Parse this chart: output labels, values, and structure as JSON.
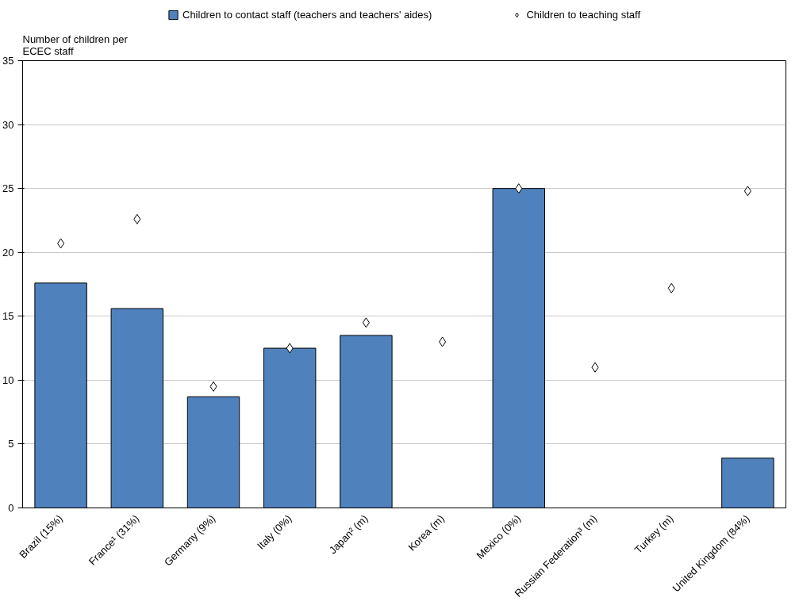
{
  "chart_data": {
    "type": "bar",
    "ylabel": "Number of children per\nECEC staff",
    "categories": [
      "Brazil (15%)",
      "France¹ (31%)",
      "Germany (9%)",
      "Italy (0%)",
      "Japan² (m)",
      "Korea (m)",
      "Mexico (0%)",
      "Russian Federation³ (m)",
      "Turkey (m)",
      "United Kingdom (84%)"
    ],
    "series": [
      {
        "name": "Children to contact staff (teachers and teachers' aides)",
        "color": "#4f81bd",
        "values": [
          17.6,
          15.6,
          8.7,
          12.5,
          13.5,
          null,
          25.0,
          null,
          null,
          3.9
        ]
      },
      {
        "name": "Children to teaching staff",
        "type": "scatter",
        "marker": "diamond",
        "color": "#ffffff",
        "values": [
          20.7,
          22.6,
          9.5,
          12.5,
          14.5,
          13.0,
          25.0,
          11.0,
          17.2,
          24.8
        ]
      }
    ],
    "ylim": [
      0,
      35
    ],
    "yticks": [
      0,
      5,
      10,
      15,
      20,
      25,
      30,
      35
    ],
    "grid": "y",
    "legend": "top"
  }
}
